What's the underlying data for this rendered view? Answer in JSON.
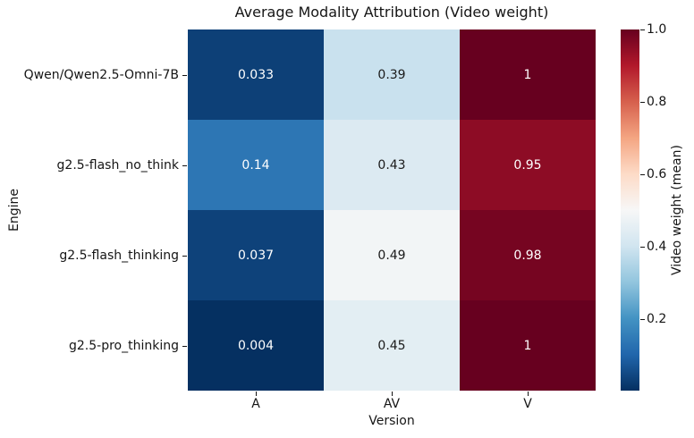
{
  "title": "Average Modality Attribution (Video weight)",
  "chart_data": {
    "type": "heatmap",
    "title": "Average Modality Attribution (Video weight)",
    "xlabel": "Version",
    "ylabel": "Engine",
    "columns": [
      "A",
      "AV",
      "V"
    ],
    "rows": [
      "Qwen/Qwen2.5-Omni-7B",
      "g2.5-flash_no_think",
      "g2.5-flash_thinking",
      "g2.5-pro_thinking"
    ],
    "values": [
      [
        0.033,
        0.39,
        1
      ],
      [
        0.14,
        0.43,
        0.95
      ],
      [
        0.037,
        0.49,
        0.98
      ],
      [
        0.004,
        0.45,
        1
      ]
    ],
    "value_labels": [
      [
        "0.033",
        "0.39",
        "1"
      ],
      [
        "0.14",
        "0.43",
        "0.95"
      ],
      [
        "0.037",
        "0.49",
        "0.98"
      ],
      [
        "0.004",
        "0.45",
        "1"
      ]
    ],
    "vmin": 0.004,
    "vmax": 1.0,
    "colormap": "RdBu_r",
    "colormap_stops": [
      "#053061",
      "#2166ac",
      "#4393c3",
      "#92c5de",
      "#d1e5f0",
      "#f7f7f7",
      "#fddbc7",
      "#f4a582",
      "#d6604d",
      "#b2182b",
      "#67001f"
    ],
    "annotation_colors": {
      "on_light": "#1a1a1a",
      "on_dark": "#ffffff"
    },
    "colorbar": {
      "label": "Video weight (mean)",
      "tick_values": [
        1.0,
        0.8,
        0.6,
        0.4,
        0.2
      ],
      "tick_labels": [
        "1.0",
        "0.8",
        "0.6",
        "0.4",
        "0.2"
      ]
    },
    "grid": false,
    "legend_position": "right-colorbar"
  }
}
